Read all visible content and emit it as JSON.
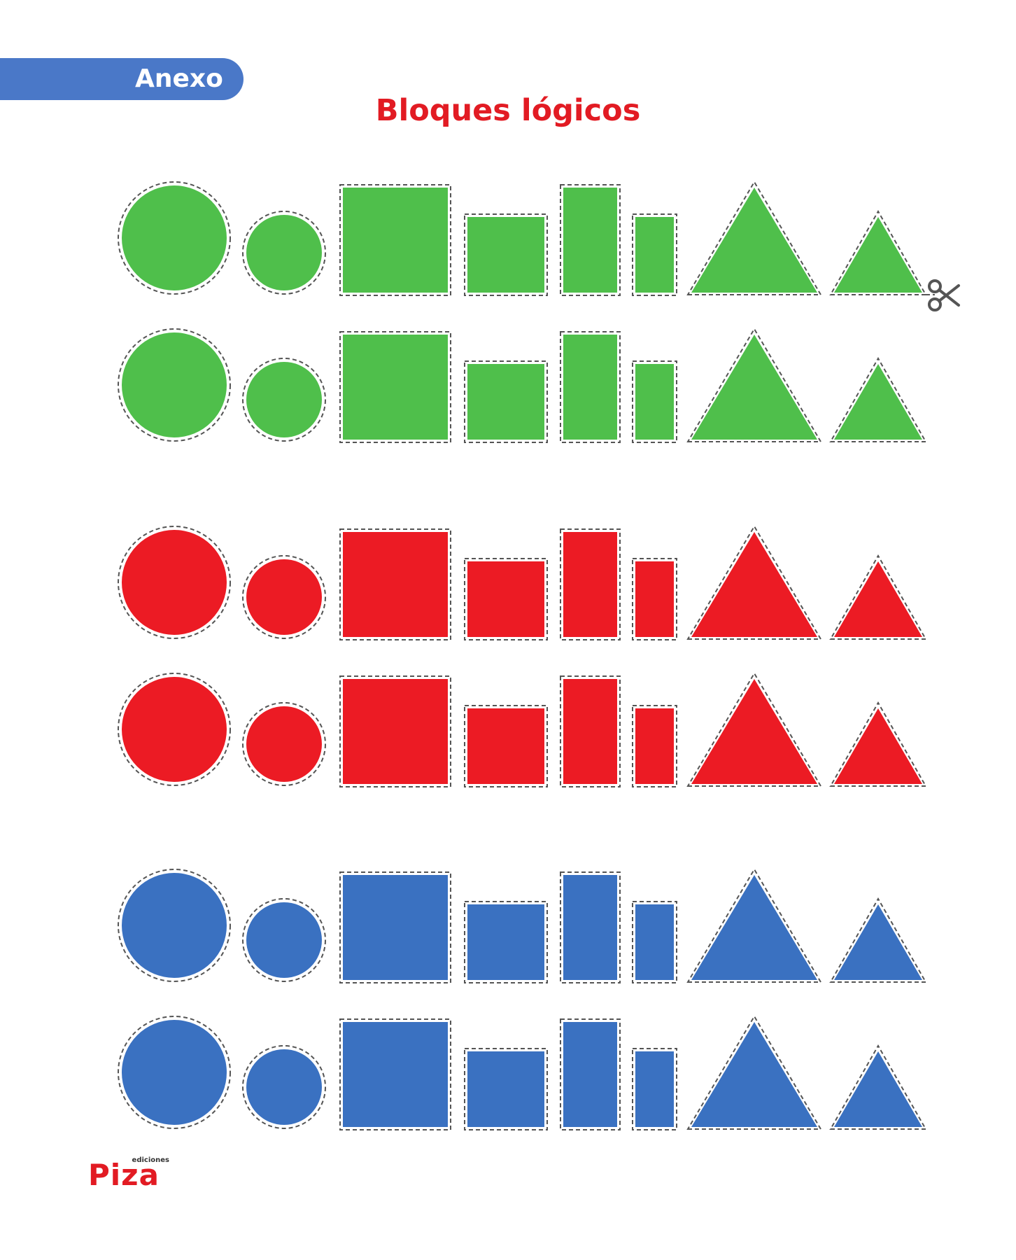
{
  "header": {
    "tab_label": "Anexo",
    "title": "Bloques lógicos"
  },
  "colors": {
    "tab": "#4a78c8",
    "title": "#e21b23",
    "cut_line": "#555555",
    "row_groups": [
      "#4fbf4b",
      "#ec1b24",
      "#3a71c1"
    ]
  },
  "blocks": {
    "color_groups": [
      "green",
      "red",
      "blue"
    ],
    "rows_per_group": 2,
    "shapes_per_row": [
      "large-circle",
      "small-circle",
      "large-square",
      "small-square",
      "large-rectangle",
      "small-rectangle",
      "large-triangle",
      "small-triangle"
    ]
  },
  "icons": {
    "cut": "scissors-icon"
  },
  "footer": {
    "logo_small": "ediciones",
    "logo_main": "Piza"
  }
}
